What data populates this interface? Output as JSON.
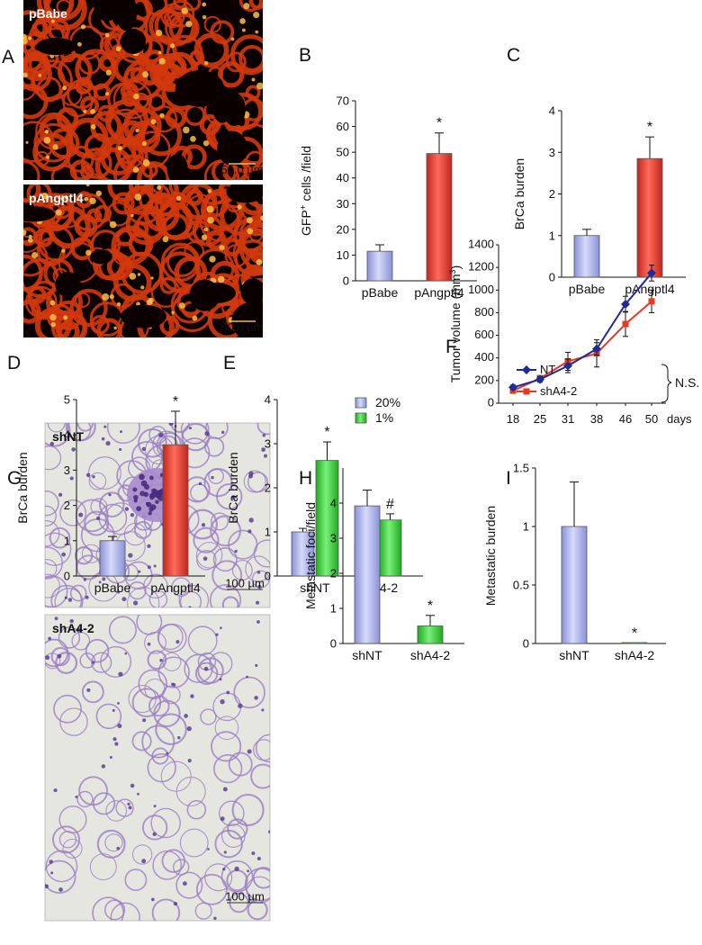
{
  "figure": {
    "colors": {
      "blue_bar": "#b2b8ee",
      "red_bar": "#e8453a",
      "green_bar": "#33d133",
      "line_nt": "#1f2c96",
      "line_sh": "#e83a22",
      "fluor_bg": "#0a0000",
      "fluor_tissue": "#d2380c",
      "he_bg": "#e6e6e0",
      "he_tissue": "#9a7ec0"
    },
    "images": [
      {
        "panel": "A",
        "label": "pBabe",
        "scale": "50.0 µm",
        "type": "fluorescence"
      },
      {
        "panel": "A",
        "label": "pAngptl4",
        "scale": "50.0 µm",
        "type": "fluorescence"
      },
      {
        "panel": "G",
        "label": "shNT",
        "scale": "100 µm",
        "type": "histology"
      },
      {
        "panel": "G",
        "label": "shA4-2",
        "scale": "100 µm",
        "type": "histology"
      }
    ]
  },
  "chart_data": [
    {
      "panel": "B",
      "type": "bar",
      "categories": [
        "pBabe",
        "pAngptl4"
      ],
      "values": [
        11.5,
        49.5
      ],
      "errors": [
        2.5,
        8
      ],
      "bar_colors": [
        "blue",
        "red"
      ],
      "ylabel_pre": "GFP",
      "ylabel_sup": "+",
      "ylabel_post": " cells /field",
      "ylim": [
        0,
        70
      ],
      "yticks": [
        "0",
        "10",
        "20",
        "30",
        "40",
        "50",
        "60",
        "70"
      ],
      "annotations": [
        {
          "bar": 1,
          "text": "*"
        }
      ]
    },
    {
      "panel": "C",
      "type": "bar",
      "categories": [
        "pBabe",
        "pAngptl4"
      ],
      "values": [
        1.0,
        2.85
      ],
      "errors": [
        0.15,
        0.52
      ],
      "bar_colors": [
        "blue",
        "red"
      ],
      "ylabel": "BrCa burden",
      "ylim": [
        0,
        4
      ],
      "yticks": [
        "0",
        "1",
        "2",
        "3",
        "4"
      ],
      "annotations": [
        {
          "bar": 1,
          "text": "*"
        }
      ]
    },
    {
      "panel": "D",
      "type": "bar",
      "categories": [
        "pBabe",
        "pAngptl4"
      ],
      "values": [
        1.0,
        3.72
      ],
      "errors": [
        0.12,
        0.95
      ],
      "bar_colors": [
        "blue",
        "red"
      ],
      "ylabel": "BrCa burden",
      "ylim": [
        0,
        5
      ],
      "yticks": [
        "0",
        "1",
        "2",
        "3",
        "4",
        "5"
      ],
      "annotations": [
        {
          "bar": 1,
          "text": "*"
        }
      ]
    },
    {
      "panel": "E",
      "type": "bar",
      "categories": [
        "shNT",
        "shA4-2"
      ],
      "series": [
        {
          "name": "20%",
          "color": "blue",
          "values": [
            1.0,
            0.68
          ],
          "errors": [
            0.08,
            0.1
          ]
        },
        {
          "name": "1%",
          "color": "green",
          "values": [
            2.62,
            1.27
          ],
          "errors": [
            0.42,
            0.14
          ]
        }
      ],
      "ylabel": "BrCa burden",
      "ylim": [
        0,
        4
      ],
      "yticks": [
        "0",
        "1",
        "2",
        "3",
        "4"
      ],
      "annotations": [
        {
          "group": 0,
          "series": 1,
          "text": "*"
        },
        {
          "group": 1,
          "series": 1,
          "text": "#"
        }
      ],
      "legend": "top-right"
    },
    {
      "panel": "F",
      "type": "line",
      "x": [
        "18",
        "25",
        "31",
        "38",
        "46",
        "50"
      ],
      "x_unit": "days",
      "series": [
        {
          "name": "NT",
          "color": "#1f2c96",
          "marker": "diamond",
          "values": [
            140,
            210,
            330,
            480,
            875,
            1150
          ],
          "errors": [
            20,
            25,
            60,
            55,
            70,
            70
          ]
        },
        {
          "name": "shA4-2",
          "color": "#e83a22",
          "marker": "square",
          "values": [
            110,
            220,
            370,
            440,
            700,
            900
          ],
          "errors": [
            20,
            25,
            80,
            120,
            110,
            100
          ]
        }
      ],
      "ylabel_pre": "Tumor volume (mm",
      "ylabel_sup": "3",
      "ylabel_post": ")",
      "ylim": [
        0,
        1400
      ],
      "yticks": [
        "0",
        "200",
        "400",
        "600",
        "800",
        "1000",
        "1200",
        "1400"
      ],
      "bracket_label": "N.S.",
      "legend": "top-left"
    },
    {
      "panel": "H",
      "type": "bar",
      "categories": [
        "shNT",
        "shA4-2"
      ],
      "values": [
        3.92,
        0.5
      ],
      "errors": [
        0.45,
        0.3
      ],
      "bar_colors": [
        "blue",
        "green"
      ],
      "ylabel": "Metastatic foci/field",
      "ylim": [
        0,
        5
      ],
      "yticks": [
        "0",
        "1",
        "2",
        "3",
        "4"
      ],
      "annotations": [
        {
          "bar": 1,
          "text": "*"
        }
      ]
    },
    {
      "panel": "I",
      "type": "bar",
      "categories": [
        "shNT",
        "shA4-2"
      ],
      "values": [
        1.0,
        0.005
      ],
      "errors": [
        0.38,
        0.0
      ],
      "bar_colors": [
        "blue",
        "green"
      ],
      "ylabel": "Metastatic burden",
      "ylim": [
        0,
        1.5
      ],
      "yticks": [
        "0",
        "0.5",
        "1",
        "1.5"
      ],
      "annotations": [
        {
          "bar": 1,
          "text": "*"
        }
      ]
    }
  ]
}
